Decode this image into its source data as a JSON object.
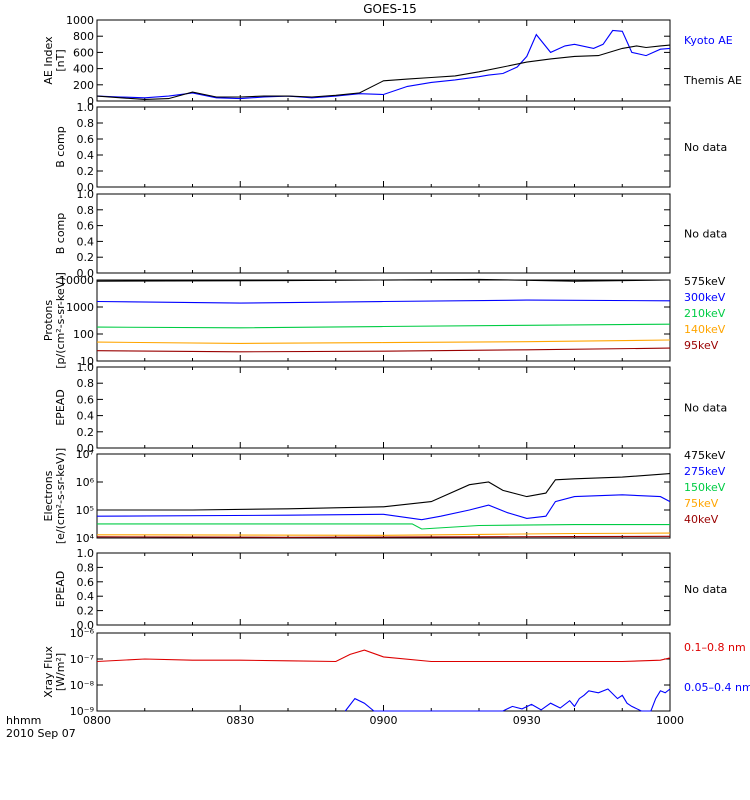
{
  "title": "GOES-15",
  "footer": {
    "hhmm": "hhmm",
    "date": "2010 Sep 07"
  },
  "x_ticks": [
    "0800",
    "0830",
    "0900",
    "0930",
    "1000"
  ],
  "no_data": "No data",
  "colors": {
    "black": "#000000",
    "blue": "#0000ff",
    "green": "#00cc44",
    "orange": "#ffa500",
    "red": "#dd0000",
    "darkred": "#990000"
  },
  "chart_data": [
    {
      "id": "ae",
      "type": "line",
      "ylabel": [
        "AE Index",
        "[nT]"
      ],
      "ylim": [
        0,
        1000
      ],
      "yticks": [
        0,
        200,
        400,
        600,
        800,
        1000
      ],
      "x_range": [
        0,
        120
      ],
      "series": [
        {
          "name": "Kyoto AE",
          "color": "#0000ff",
          "x": [
            0,
            5,
            10,
            15,
            20,
            25,
            30,
            35,
            40,
            45,
            50,
            55,
            60,
            65,
            70,
            75,
            80,
            82,
            85,
            88,
            90,
            92,
            95,
            98,
            100,
            104,
            106,
            108,
            110,
            112,
            115,
            118,
            120
          ],
          "y": [
            60,
            50,
            40,
            60,
            100,
            40,
            30,
            50,
            60,
            40,
            60,
            90,
            80,
            180,
            230,
            260,
            300,
            320,
            340,
            420,
            550,
            820,
            600,
            680,
            700,
            650,
            700,
            870,
            860,
            600,
            560,
            640,
            650
          ]
        },
        {
          "name": "Themis AE",
          "color": "#000000",
          "x": [
            0,
            5,
            10,
            15,
            20,
            25,
            30,
            35,
            40,
            45,
            50,
            55,
            60,
            65,
            70,
            75,
            80,
            85,
            90,
            95,
            100,
            105,
            110,
            113,
            115,
            118,
            120
          ],
          "y": [
            60,
            40,
            20,
            30,
            110,
            50,
            50,
            60,
            60,
            50,
            70,
            100,
            250,
            270,
            290,
            310,
            360,
            420,
            480,
            520,
            550,
            560,
            650,
            680,
            660,
            680,
            690
          ]
        }
      ]
    },
    {
      "id": "b1",
      "type": "line",
      "ylabel": [
        "B comp"
      ],
      "ylim": [
        0,
        1
      ],
      "yticks": [
        0,
        0.2,
        0.4,
        0.6,
        0.8,
        1.0
      ],
      "series": []
    },
    {
      "id": "b2",
      "type": "line",
      "ylabel": [
        "B comp"
      ],
      "ylim": [
        0,
        1
      ],
      "yticks": [
        0,
        0.2,
        0.4,
        0.6,
        0.8,
        1.0
      ],
      "series": []
    },
    {
      "id": "protons",
      "type": "line",
      "log": true,
      "ylabel": [
        "Protons",
        "[p/(cm²-s-sr-keV)]"
      ],
      "ylim": [
        10,
        10000
      ],
      "yticks": [
        10,
        100,
        1000,
        10000
      ],
      "ytick_labels": [
        "10",
        "100",
        "1000",
        "10000"
      ],
      "x_range": [
        0,
        120
      ],
      "series": [
        {
          "name": "575keV",
          "color": "#000000",
          "x": [
            0,
            40,
            80,
            100,
            120
          ],
          "y": [
            9000,
            9500,
            10500,
            9000,
            10000
          ]
        },
        {
          "name": "300keV",
          "color": "#0000ff",
          "x": [
            0,
            30,
            60,
            90,
            120
          ],
          "y": [
            1600,
            1400,
            1600,
            1800,
            1700
          ]
        },
        {
          "name": "210keV",
          "color": "#00cc44",
          "x": [
            0,
            30,
            60,
            90,
            120
          ],
          "y": [
            180,
            170,
            190,
            210,
            230
          ]
        },
        {
          "name": "140keV",
          "color": "#ffa500",
          "x": [
            0,
            30,
            60,
            90,
            120
          ],
          "y": [
            50,
            45,
            48,
            52,
            60
          ]
        },
        {
          "name": "95keV",
          "color": "#990000",
          "x": [
            0,
            30,
            60,
            90,
            120
          ],
          "y": [
            24,
            22,
            23,
            26,
            30
          ]
        }
      ]
    },
    {
      "id": "epead1",
      "type": "line",
      "ylabel": [
        "EPEAD"
      ],
      "ylim": [
        0,
        1
      ],
      "yticks": [
        0,
        0.2,
        0.4,
        0.6,
        0.8,
        1.0
      ],
      "series": []
    },
    {
      "id": "electrons",
      "type": "line",
      "log": true,
      "ylabel": [
        "Electrons",
        "[e/(cm²-s-sr-keV)]"
      ],
      "ylim": [
        10000,
        10000000
      ],
      "yticks": [
        10000,
        100000,
        1000000,
        10000000
      ],
      "ytick_labels": [
        "10⁴",
        "10⁵",
        "10⁶",
        "10⁷"
      ],
      "x_range": [
        0,
        120
      ],
      "series": [
        {
          "name": "475keV",
          "color": "#000000",
          "x": [
            0,
            20,
            40,
            60,
            70,
            78,
            82,
            85,
            90,
            94,
            96,
            100,
            110,
            120
          ],
          "y": [
            100000,
            100000,
            110000,
            130000,
            200000,
            800000,
            1000000,
            500000,
            300000,
            400000,
            1200000,
            1300000,
            1500000,
            2000000
          ]
        },
        {
          "name": "275keV",
          "color": "#0000ff",
          "x": [
            0,
            40,
            60,
            68,
            72,
            78,
            82,
            86,
            90,
            94,
            96,
            100,
            110,
            118,
            120
          ],
          "y": [
            60000,
            65000,
            70000,
            45000,
            60000,
            100000,
            150000,
            80000,
            50000,
            60000,
            200000,
            300000,
            350000,
            300000,
            200000
          ]
        },
        {
          "name": "150keV",
          "color": "#00cc44",
          "x": [
            0,
            40,
            66,
            68,
            80,
            100,
            120
          ],
          "y": [
            32000,
            32000,
            32000,
            21000,
            28000,
            30000,
            30000
          ]
        },
        {
          "name": "75keV",
          "color": "#ffa500",
          "x": [
            0,
            60,
            80,
            100,
            120
          ],
          "y": [
            13000,
            12500,
            13500,
            14500,
            15000
          ]
        },
        {
          "name": "40keV",
          "color": "#990000",
          "x": [
            0,
            40,
            60,
            80,
            100,
            120
          ],
          "y": [
            11000,
            10600,
            10800,
            11000,
            11200,
            11500
          ]
        }
      ]
    },
    {
      "id": "epead2",
      "type": "line",
      "ylabel": [
        "EPEAD"
      ],
      "ylim": [
        0,
        1
      ],
      "yticks": [
        0,
        0.2,
        0.4,
        0.6,
        0.8,
        1.0
      ],
      "series": []
    },
    {
      "id": "xray",
      "type": "line",
      "log": true,
      "ylabel": [
        "Xray Flux",
        "[W/m²]"
      ],
      "ylim": [
        1e-09,
        1e-06
      ],
      "yticks": [
        1e-09,
        1e-08,
        1e-07,
        1e-06
      ],
      "ytick_labels": [
        "10⁻⁹",
        "10⁻⁸",
        "10⁻⁷",
        "10⁻⁶"
      ],
      "x_range": [
        0,
        120
      ],
      "series": [
        {
          "name": "0.1–0.8 nm",
          "color": "#dd0000",
          "x": [
            0,
            10,
            20,
            30,
            40,
            50,
            53,
            56,
            60,
            70,
            80,
            90,
            100,
            110,
            118,
            120
          ],
          "y": [
            8e-08,
            1e-07,
            9e-08,
            9e-08,
            8.5e-08,
            8e-08,
            1.5e-07,
            2.2e-07,
            1.2e-07,
            8e-08,
            8e-08,
            8e-08,
            8e-08,
            8e-08,
            9e-08,
            1.1e-07
          ]
        },
        {
          "name": "0.05–0.4 nm",
          "color": "#0000ff",
          "x": [
            52,
            54,
            56,
            58,
            85,
            87,
            89,
            91,
            93,
            95,
            97,
            99,
            100,
            101,
            102,
            103,
            105,
            107,
            109,
            110,
            111,
            112,
            114,
            116,
            117,
            118,
            119,
            120
          ],
          "y": [
            1e-09,
            3e-09,
            2e-09,
            1e-09,
            1e-09,
            1.5e-09,
            1.2e-09,
            1.8e-09,
            1.1e-09,
            2e-09,
            1.3e-09,
            2.5e-09,
            1.5e-09,
            3e-09,
            4e-09,
            6e-09,
            5e-09,
            7e-09,
            3e-09,
            4e-09,
            2e-09,
            1.5e-09,
            1e-09,
            1e-09,
            3e-09,
            6e-09,
            5e-09,
            7e-09
          ]
        }
      ]
    }
  ]
}
